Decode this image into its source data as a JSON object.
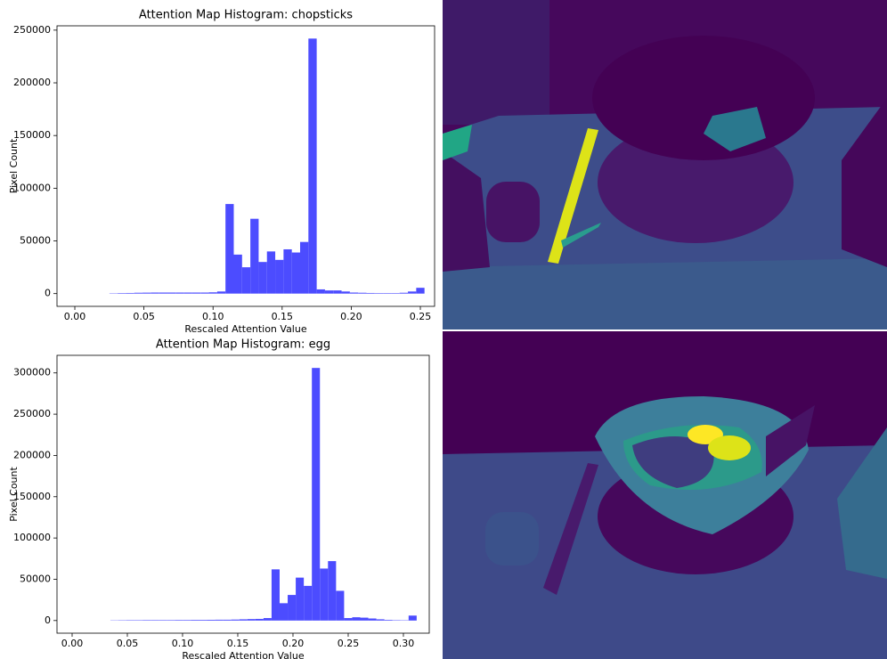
{
  "chart_data": [
    {
      "type": "histogram",
      "title": "Attention Map Histogram: chopsticks",
      "x_label": "Rescaled Attention Value",
      "y_label": "Pixel Count",
      "color": "#4c4cff",
      "bins": [
        0.025,
        0.031,
        0.037,
        0.043,
        0.049,
        0.055,
        0.061,
        0.067,
        0.073,
        0.079,
        0.085,
        0.091,
        0.097,
        0.103,
        0.109,
        0.115,
        0.121,
        0.127,
        0.133,
        0.139,
        0.145,
        0.151,
        0.157,
        0.163,
        0.169,
        0.175,
        0.181,
        0.187,
        0.193,
        0.199,
        0.205,
        0.211,
        0.217,
        0.223,
        0.229,
        0.235,
        0.241,
        0.247,
        0.253
      ],
      "values": [
        300,
        500,
        600,
        800,
        900,
        1000,
        1000,
        1000,
        1000,
        1000,
        1000,
        1000,
        1200,
        2000,
        85000,
        37000,
        25000,
        71000,
        30000,
        40000,
        32000,
        42000,
        39000,
        49000,
        242000,
        4000,
        3000,
        3000,
        2000,
        1000,
        800,
        600,
        500,
        500,
        500,
        800,
        2000,
        5500
      ],
      "xlim": [
        -0.0129,
        0.2603
      ],
      "ylim": [
        -12100,
        254100
      ],
      "xticks": [
        {
          "value": 0,
          "label": "0.00"
        },
        0.05,
        {
          "value": 0.1,
          "label": "0.10"
        },
        0.15,
        {
          "value": 0.2,
          "label": "0.20"
        },
        0.25
      ],
      "yticks": [
        0,
        50000,
        100000,
        150000,
        200000,
        250000
      ]
    },
    {
      "type": "histogram",
      "title": "Attention Map Histogram: egg",
      "x_label": "Rescaled Attention Value",
      "y_label": "Pixel Count",
      "color": "#4c4cff",
      "bins": [
        0.0346,
        0.0419,
        0.0492,
        0.0565,
        0.0638,
        0.0711,
        0.0784,
        0.0857,
        0.093,
        0.1003,
        0.1076,
        0.1149,
        0.1222,
        0.1295,
        0.1368,
        0.1441,
        0.1514,
        0.1587,
        0.166,
        0.1733,
        0.1806,
        0.1879,
        0.1952,
        0.2025,
        0.2098,
        0.2171,
        0.2244,
        0.2317,
        0.239,
        0.2463,
        0.2536,
        0.2609,
        0.2682,
        0.2755,
        0.2828,
        0.2901,
        0.2974,
        0.3047,
        0.312
      ],
      "values": [
        300,
        400,
        500,
        500,
        600,
        600,
        600,
        600,
        700,
        700,
        800,
        800,
        900,
        1000,
        1000,
        1200,
        1500,
        1800,
        2000,
        3000,
        62000,
        21000,
        31000,
        52000,
        42000,
        306000,
        63000,
        72000,
        36000,
        3000,
        4000,
        3500,
        2500,
        1500,
        800,
        500,
        400,
        6000
      ],
      "xlim": [
        -0.0137,
        0.3234
      ],
      "ylim": [
        -15300,
        321300
      ],
      "xticks": [
        {
          "value": 0,
          "label": "0.00"
        },
        0.05,
        {
          "value": 0.1,
          "label": "0.10"
        },
        0.15,
        {
          "value": 0.2,
          "label": "0.20"
        },
        0.25,
        {
          "value": 0.3,
          "label": "0.30"
        }
      ],
      "yticks": [
        0,
        50000,
        100000,
        150000,
        200000,
        250000,
        300000
      ]
    }
  ]
}
